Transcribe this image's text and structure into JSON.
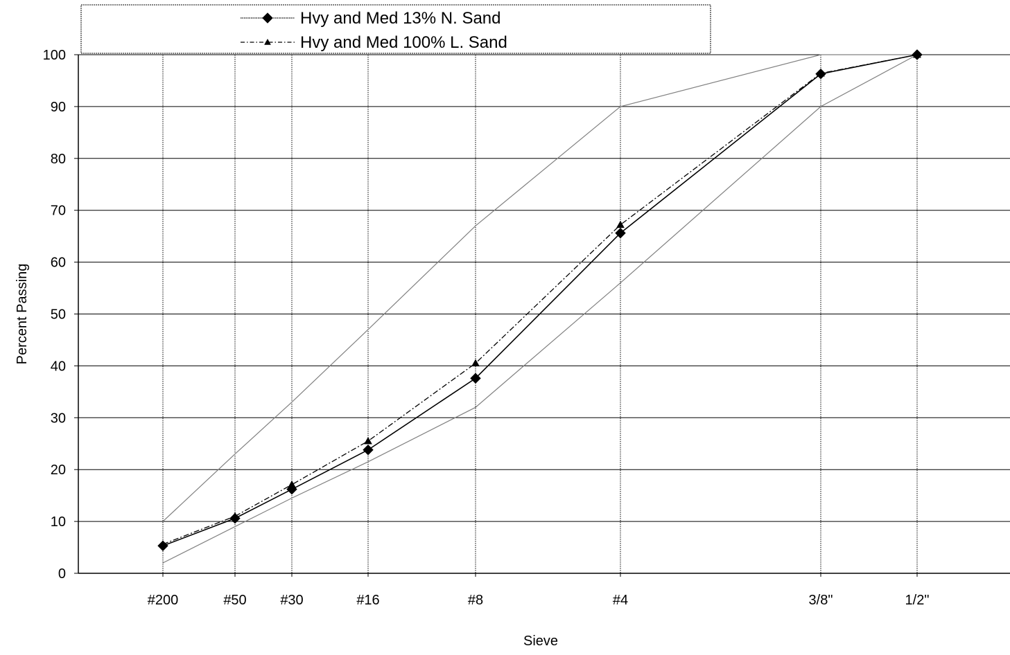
{
  "chart_data": {
    "type": "line",
    "xlabel": "Sieve",
    "ylabel": "Percent Passing",
    "ylim": [
      0,
      100
    ],
    "yticks": [
      0,
      10,
      20,
      30,
      40,
      50,
      60,
      70,
      80,
      90,
      100
    ],
    "categories": [
      "#200",
      "#50",
      "#30",
      "#16",
      "#8",
      "#4",
      "3/8\"",
      "1/2\""
    ],
    "grid": {
      "horizontal": true,
      "vertical": true
    },
    "legend_position": "top-left",
    "series": [
      {
        "name": "Hvy and Med 13% N. Sand",
        "values": [
          5.3,
          10.6,
          16.2,
          23.8,
          37.6,
          65.6,
          96.3,
          100
        ],
        "marker": "diamond",
        "line_style": "solid",
        "color": "#000000"
      },
      {
        "name": "Hvy and Med 100% L. Sand",
        "values": [
          5.6,
          11,
          17.1,
          25.5,
          40.5,
          67.2,
          96.4,
          100
        ],
        "marker": "triangle",
        "line_style": "dash-dot",
        "color": "#000000"
      }
    ],
    "limits": {
      "upper": [
        10,
        23,
        33,
        47,
        67,
        90,
        100,
        100
      ],
      "lower": [
        2,
        9,
        14.5,
        21.5,
        32,
        56,
        90,
        100
      ],
      "color": "#808080"
    }
  }
}
